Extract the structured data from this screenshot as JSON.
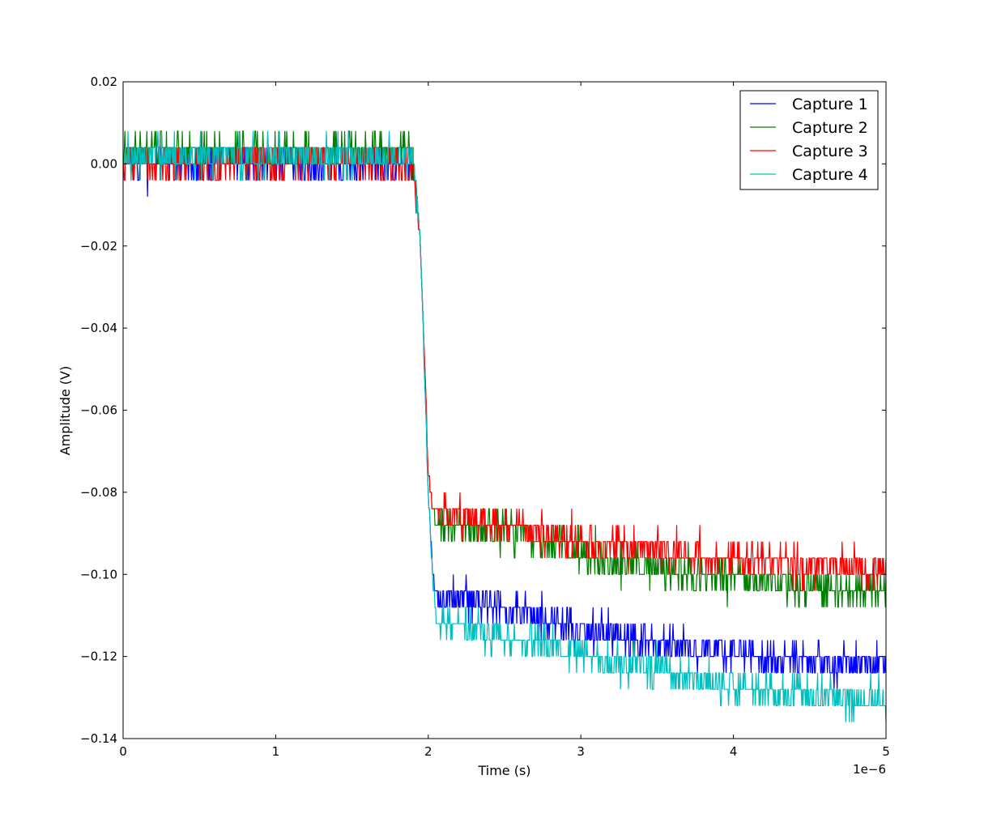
{
  "chart_data": {
    "type": "line",
    "title": "",
    "xlabel": "Time (s)",
    "ylabel": "Amplitude (V)",
    "x_offset_label": "1e−6",
    "xlim": [
      0,
      5e-06
    ],
    "ylim": [
      -0.14,
      0.02
    ],
    "xticks": [
      0,
      1e-06,
      2e-06,
      3e-06,
      4e-06,
      5e-06
    ],
    "xtick_labels": [
      "0",
      "1",
      "2",
      "3",
      "4",
      "5"
    ],
    "yticks": [
      0.02,
      0.0,
      -0.02,
      -0.04,
      -0.06,
      -0.08,
      -0.1,
      -0.12,
      -0.14
    ],
    "ytick_labels": [
      "0.02",
      "0.00",
      "−0.02",
      "−0.04",
      "−0.06",
      "−0.08",
      "−0.10",
      "−0.12",
      "−0.14"
    ],
    "grid": false,
    "legend_position": "top-right",
    "quantization_step": 0.004,
    "x": [
      0,
      2.5e-07,
      5e-07,
      7.5e-07,
      1e-06,
      1.25e-06,
      1.5e-06,
      1.75e-06,
      1.9e-06,
      1.95e-06,
      2e-06,
      2.03e-06,
      2.05e-06,
      2.1e-06,
      2.25e-06,
      2.5e-06,
      2.75e-06,
      3e-06,
      3.25e-06,
      3.5e-06,
      3.75e-06,
      4e-06,
      4.25e-06,
      4.5e-06,
      4.75e-06,
      5e-06
    ],
    "series": [
      {
        "name": "Capture 1",
        "color": "#0000ff",
        "values": [
          0.0,
          0.0,
          0.0,
          0.0,
          0.0,
          0.0,
          0.0,
          0.0,
          0.0,
          -0.02,
          -0.08,
          -0.1,
          -0.106,
          -0.106,
          -0.106,
          -0.108,
          -0.111,
          -0.113,
          -0.115,
          -0.117,
          -0.118,
          -0.119,
          -0.12,
          -0.121,
          -0.122,
          -0.122
        ]
      },
      {
        "name": "Capture 2",
        "color": "#008000",
        "values": [
          0.003,
          0.003,
          0.003,
          0.003,
          0.003,
          0.003,
          0.003,
          0.003,
          0.003,
          -0.02,
          -0.075,
          -0.085,
          -0.087,
          -0.088,
          -0.089,
          -0.09,
          -0.092,
          -0.095,
          -0.097,
          -0.098,
          -0.1,
          -0.101,
          -0.102,
          -0.103,
          -0.104,
          -0.104
        ]
      },
      {
        "name": "Capture 3",
        "color": "#ff0000",
        "values": [
          0.0,
          0.0,
          0.0,
          0.0,
          0.0,
          0.0,
          0.0,
          0.0,
          0.0,
          -0.02,
          -0.075,
          -0.084,
          -0.085,
          -0.085,
          -0.086,
          -0.088,
          -0.09,
          -0.092,
          -0.093,
          -0.094,
          -0.095,
          -0.096,
          -0.097,
          -0.098,
          -0.098,
          -0.099
        ]
      },
      {
        "name": "Capture 4",
        "color": "#00bfbf",
        "values": [
          0.002,
          0.002,
          0.002,
          0.002,
          0.002,
          0.002,
          0.002,
          0.002,
          0.002,
          -0.02,
          -0.08,
          -0.102,
          -0.11,
          -0.112,
          -0.113,
          -0.115,
          -0.117,
          -0.119,
          -0.121,
          -0.123,
          -0.125,
          -0.127,
          -0.128,
          -0.129,
          -0.13,
          -0.131
        ]
      }
    ]
  }
}
